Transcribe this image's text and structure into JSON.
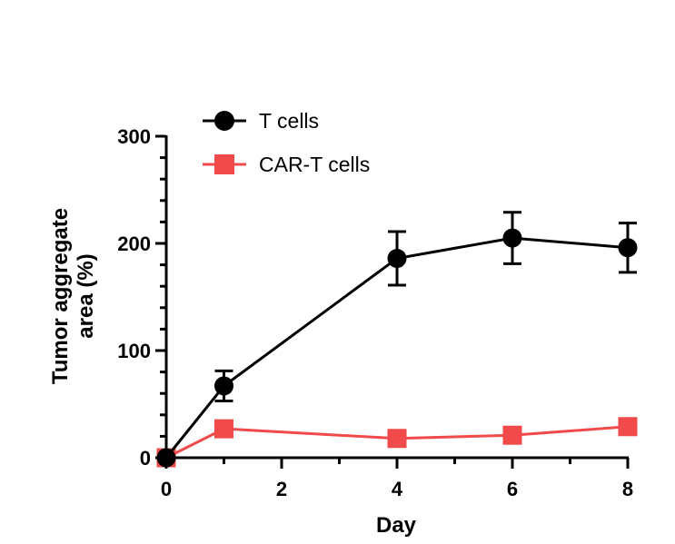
{
  "chart_data": {
    "type": "line",
    "xlabel": "Day",
    "ylabel_lines": [
      "Tumor aggregate",
      "area (%)"
    ],
    "xlim": [
      0,
      8
    ],
    "ylim": [
      0,
      300
    ],
    "x_ticks": [
      0,
      2,
      4,
      6,
      8
    ],
    "y_ticks": [
      0,
      100,
      200,
      300
    ],
    "grid": false,
    "legend_position": "top-left",
    "series": [
      {
        "name": "T cells",
        "color": "#000000",
        "marker": "circle",
        "x": [
          0,
          1,
          4,
          6,
          8
        ],
        "y": [
          0,
          67,
          186,
          205,
          196
        ],
        "error": [
          0,
          14,
          25,
          24,
          23
        ]
      },
      {
        "name": "CAR-T cells",
        "color": "#f04a4a",
        "marker": "square",
        "x": [
          0,
          1,
          4,
          6,
          8
        ],
        "y": [
          0,
          27,
          18,
          21,
          29
        ],
        "error": [
          0,
          3,
          3,
          3,
          3
        ]
      }
    ]
  }
}
